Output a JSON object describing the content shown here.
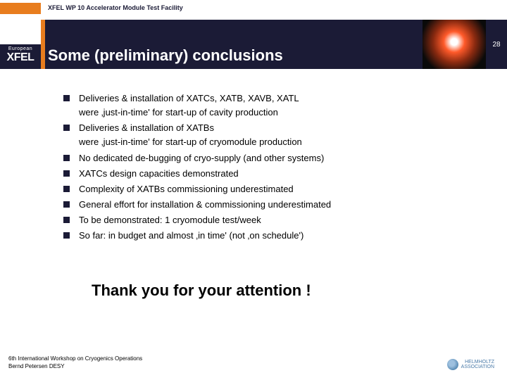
{
  "topbar": {
    "title": "XFEL WP 10 Accelerator Module Test Facility"
  },
  "logo": {
    "line1": "European",
    "line2": "XFEL"
  },
  "heading": "Some (preliminary) conclusions",
  "pagenum": "28",
  "bullets": [
    " Deliveries & installation of XATCs, XATB, XAVB, XATL\nwere ‚just-in-time' for start-up of cavity production",
    " Deliveries & installation of XATBs\nwere ‚just-in-time' for start-up of cryomodule production",
    " No dedicated de-bugging of cryo-supply (and other systems)",
    " XATCs design capacities demonstrated",
    " Complexity of XATBs commissioning underestimated",
    " General effort for installation & commissioning underestimated",
    " To be demonstrated: 1 cryomodule test/week",
    " So far: in budget and almost ‚in time' (not ‚on schedule')"
  ],
  "thanks": "Thank you for your attention !",
  "footer": {
    "line1": "6th International Workshop on Cryogenics Operations",
    "line2": "Bernd Petersen DESY"
  },
  "footerLogo": {
    "text": "HELMHOLTZ\nASSOCIATION"
  }
}
